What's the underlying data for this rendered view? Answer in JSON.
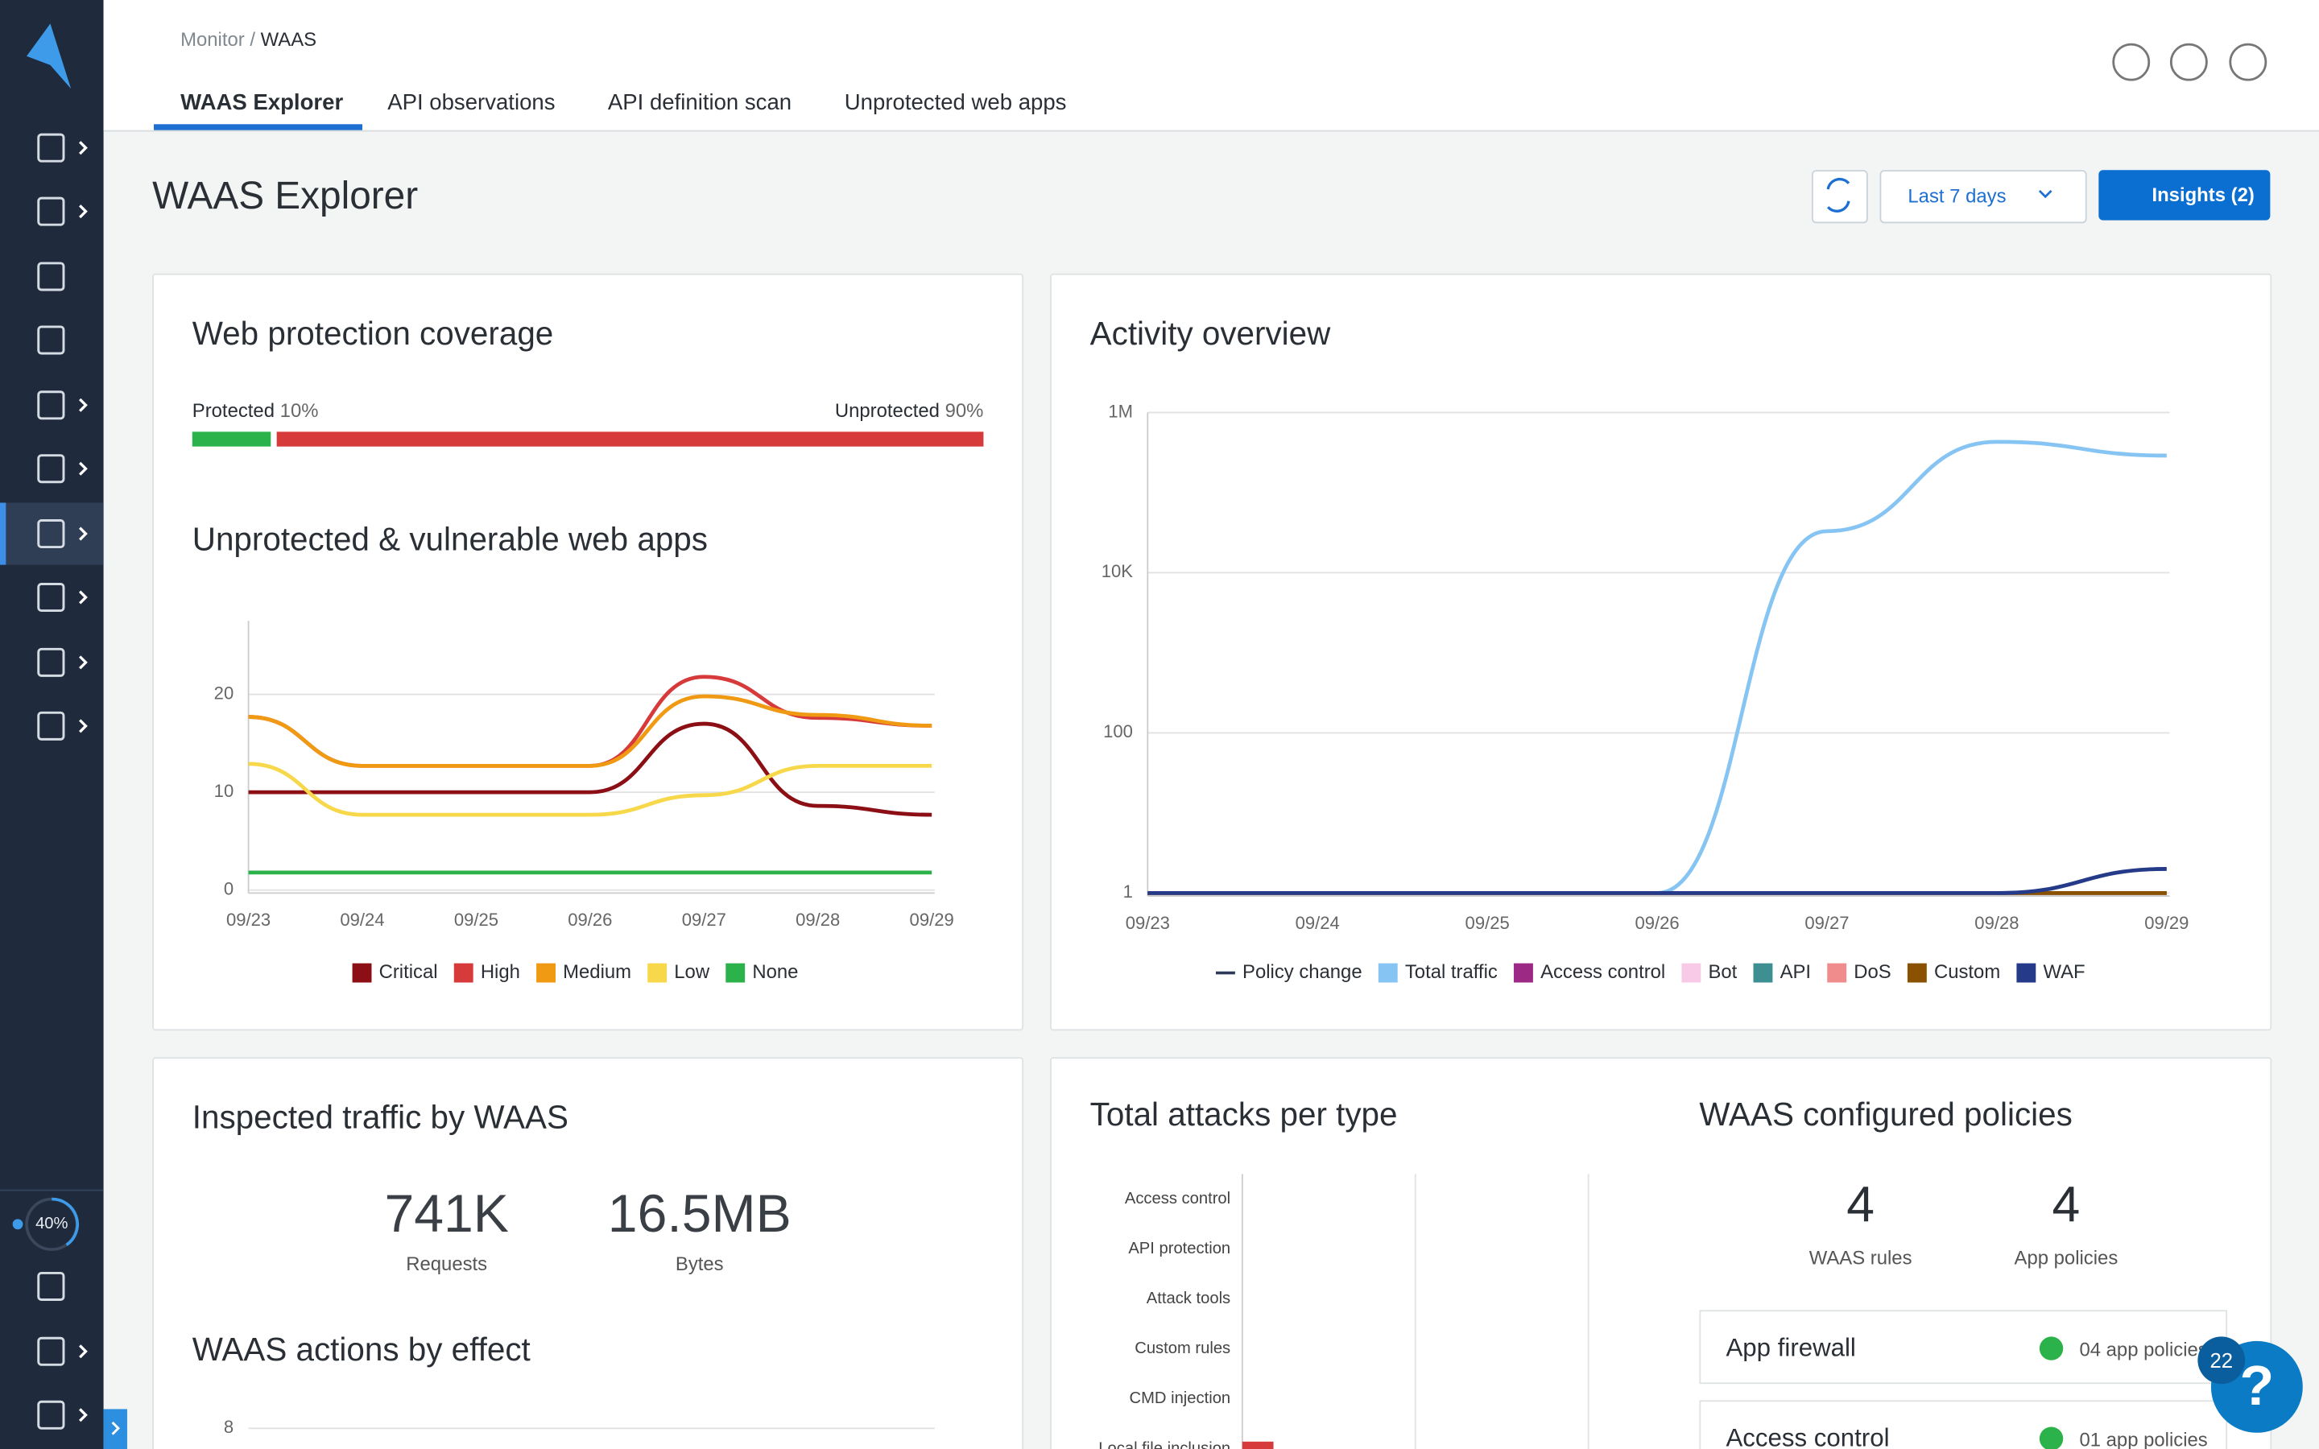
{
  "breadcrumb": {
    "parent": "Monitor /",
    "current": "WAAS"
  },
  "tabs": [
    "WAAS Explorer",
    "API observations",
    "API definition scan",
    "Unprotected web apps"
  ],
  "header": {
    "title": "WAAS Explorer",
    "date_range": "Last 7 days",
    "insights": "Insights (2)"
  },
  "sidebar": {
    "progress": "40%"
  },
  "coverage": {
    "title": "Web protection coverage",
    "segments": [
      {
        "label": "Protected",
        "value": 10,
        "value_label": "10%",
        "color": "#2cb24a"
      },
      {
        "label": "Unprotected",
        "value": 90,
        "value_label": "90%",
        "color": "#d63a3a"
      }
    ]
  },
  "inspected": {
    "title": "Inspected traffic by WAAS",
    "stats": [
      {
        "value": "741K",
        "label": "Requests"
      },
      {
        "value": "16.5MB",
        "label": "Bytes"
      }
    ]
  },
  "policies": {
    "title": "WAAS configured policies",
    "stats": [
      {
        "value": 4,
        "label": "WAAS rules"
      },
      {
        "value": 4,
        "label": "App policies"
      }
    ],
    "rows": [
      {
        "name": "App firewall",
        "status": "04 app policies"
      },
      {
        "name": "Access control",
        "status": "01 app policies"
      }
    ]
  },
  "help": {
    "icon": "?",
    "badge": "22"
  },
  "chart_data": [
    {
      "type": "line",
      "title": "Unprotected & vulnerable web apps",
      "categories": [
        "09/23",
        "09/24",
        "09/25",
        "09/26",
        "09/27",
        "09/28",
        "09/29"
      ],
      "ylim": [
        0,
        27.5
      ],
      "yticks": [
        0,
        10,
        20
      ],
      "grid": true,
      "series": [
        {
          "name": "Critical",
          "color": "#8b0f14",
          "values": [
            10,
            10,
            10,
            10,
            17,
            8.6,
            7.7
          ]
        },
        {
          "name": "High",
          "color": "#d63a3a",
          "values": [
            17.7,
            12.7,
            12.7,
            12.7,
            21.8,
            17.6,
            16.8
          ]
        },
        {
          "name": "Medium",
          "color": "#f09a14",
          "values": [
            17.7,
            12.7,
            12.7,
            12.7,
            19.8,
            17.9,
            16.8
          ]
        },
        {
          "name": "Low",
          "color": "#f7d84a",
          "values": [
            12.9,
            7.7,
            7.7,
            7.7,
            9.7,
            12.7,
            12.7
          ]
        },
        {
          "name": "None",
          "color": "#2cb24a",
          "values": [
            1.8,
            1.8,
            1.8,
            1.8,
            1.8,
            1.8,
            1.8
          ]
        }
      ]
    },
    {
      "type": "line",
      "title": "Activity overview",
      "log_scale": true,
      "categories": [
        "09/23",
        "09/24",
        "09/25",
        "09/26",
        "09/27",
        "09/28",
        "09/29"
      ],
      "ylim": [
        1,
        1000000
      ],
      "yticks": [
        1,
        100,
        {
          "value": 10000,
          "label": "10K"
        },
        {
          "value": 1000000,
          "label": "1M"
        }
      ],
      "grid": true,
      "series": [
        {
          "name": "Policy change",
          "color": "#2d3a5a",
          "legend_marker": "line",
          "values": [
            1,
            1,
            1,
            1,
            1,
            1,
            1
          ]
        },
        {
          "name": "Total traffic",
          "color": "#86c5f3",
          "values": [
            1,
            1,
            1,
            1,
            33000,
            430000,
            290000
          ]
        },
        {
          "name": "Access control",
          "color": "#9c2a84",
          "values": [
            1,
            1,
            1,
            1,
            1,
            1,
            1
          ]
        },
        {
          "name": "Bot",
          "color": "#f9c9e8",
          "values": [
            1,
            1,
            1,
            1,
            1,
            1,
            1
          ]
        },
        {
          "name": "API",
          "color": "#3d8f91",
          "values": [
            1,
            1,
            1,
            1,
            1,
            1,
            1
          ]
        },
        {
          "name": "DoS",
          "color": "#f08c8c",
          "values": [
            1,
            1,
            1,
            1,
            1,
            1,
            1
          ]
        },
        {
          "name": "Custom",
          "color": "#8a5200",
          "values": [
            1,
            1,
            1,
            1,
            1,
            1,
            1
          ]
        },
        {
          "name": "WAF",
          "color": "#253b8a",
          "values": [
            1,
            1,
            1,
            1,
            1,
            1,
            2
          ]
        }
      ]
    },
    {
      "type": "bar",
      "title": "Total attacks per type",
      "categories": [
        "Access control",
        "API protection",
        "Attack tools",
        "Custom rules",
        "CMD injection",
        "Local file inclusion"
      ],
      "values": [
        0,
        0,
        0,
        0,
        0,
        9
      ],
      "xlim": [
        0,
        100
      ],
      "color": "#d63a3a"
    },
    {
      "type": "line",
      "title": "WAAS actions by effect",
      "ylim": [
        0,
        8
      ],
      "yticks": [
        8
      ],
      "grid": true
    }
  ]
}
